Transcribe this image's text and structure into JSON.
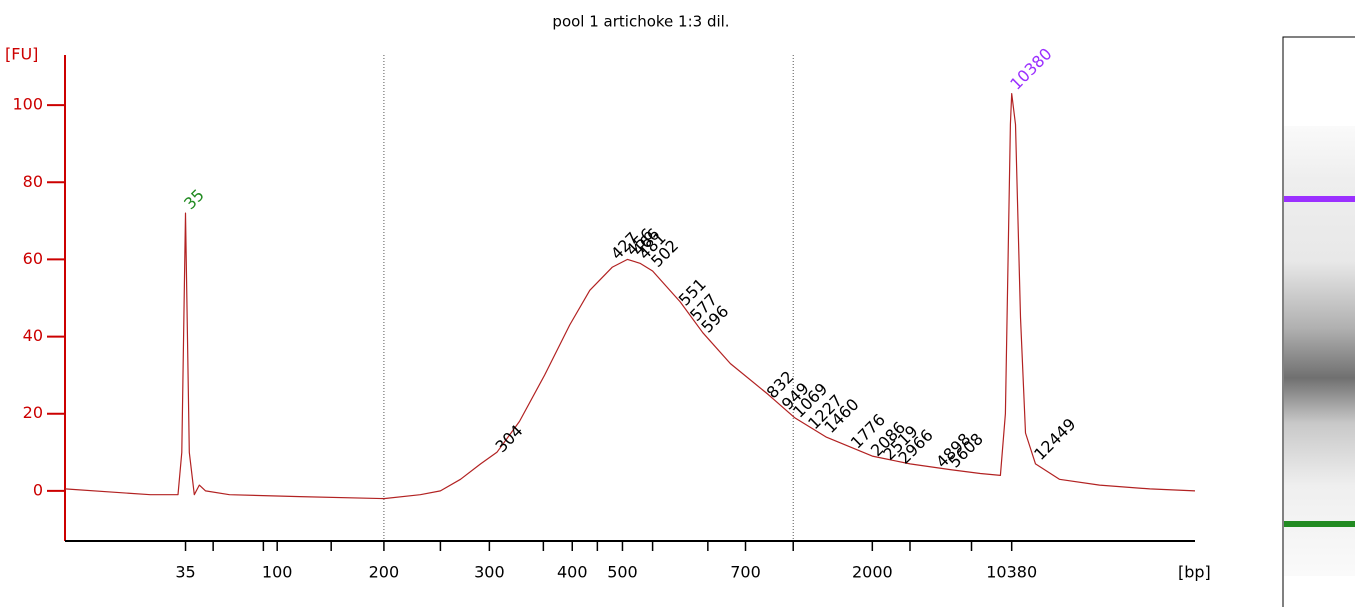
{
  "chart_data": {
    "type": "line",
    "title": "pool 1 artichoke 1:3 dil.",
    "y_label": "[FU]",
    "x_label": "[bp]",
    "xlim": [
      40,
      130
    ],
    "ylim": [
      -13,
      113
    ],
    "yticks": [
      0,
      20,
      40,
      60,
      80,
      100
    ],
    "xticks": [
      {
        "value": 49.6,
        "label": "35"
      },
      {
        "value": 56.9,
        "label": "100"
      },
      {
        "value": 65.4,
        "label": "200"
      },
      {
        "value": 73.8,
        "label": "300"
      },
      {
        "value": 80.4,
        "label": "400"
      },
      {
        "value": 84.4,
        "label": "500"
      },
      {
        "value": 94.2,
        "label": "700"
      },
      {
        "value": 104.3,
        "label": "2000"
      },
      {
        "value": 115.4,
        "label": "10380"
      }
    ],
    "minor_xticks": [
      51.8,
      55.8,
      61.2,
      69.9,
      78.1,
      82.4,
      86.8,
      91.2,
      98.0,
      107.3,
      112.2
    ],
    "reference_lines": [
      65.4,
      98.0
    ],
    "x": [
      40.0,
      46.8,
      49.0,
      49.3,
      49.6,
      49.9,
      50.3,
      50.7,
      51.2,
      53.1,
      58.7,
      65.4,
      68.3,
      69.9,
      71.5,
      73.1,
      74.4,
      76.2,
      78.2,
      80.2,
      81.8,
      83.6,
      84.8,
      85.8,
      86.8,
      89.0,
      90.8,
      93.0,
      96.0,
      98.1,
      100.6,
      104.3,
      107.3,
      110.5,
      112.9,
      114.5,
      114.9,
      115.3,
      115.4,
      115.7,
      116.1,
      116.5,
      117.3,
      119.2,
      122.4,
      126.4,
      130.0
    ],
    "series": [
      {
        "color": "#b22222",
        "values": [
          0.5,
          -1,
          -1,
          10,
          72,
          10,
          -1,
          1.5,
          0,
          -1,
          -1.5,
          -2,
          -1,
          0,
          3,
          7,
          10,
          18,
          30,
          43,
          52,
          58,
          60,
          59,
          57,
          49,
          41,
          33,
          25,
          19,
          14,
          9,
          7,
          5.5,
          4.5,
          4,
          20,
          95,
          103,
          95,
          45,
          15,
          7,
          3,
          1.5,
          0.5,
          0
        ]
      }
    ],
    "peaks": {
      "sizes": [
        35,
        304,
        427,
        456,
        466,
        481,
        502,
        551,
        577,
        596,
        832,
        949,
        1069,
        1227,
        1460,
        1776,
        2086,
        2519,
        2966,
        4898,
        5608,
        10380,
        12449
      ],
      "x": [
        49.6,
        74.4,
        83.6,
        84.8,
        85.3,
        85.8,
        86.8,
        89.0,
        89.9,
        90.8,
        96.0,
        97.2,
        98.1,
        99.3,
        100.6,
        102.7,
        104.3,
        105.3,
        106.5,
        109.5,
        110.5,
        115.4,
        117.3
      ],
      "y": [
        72,
        9,
        59,
        60,
        60,
        59,
        57,
        47,
        43,
        40,
        23,
        20,
        18,
        15,
        14,
        10,
        8,
        7,
        6,
        5,
        5,
        103,
        7
      ],
      "colors": [
        "#228b22",
        "#000000",
        "#000000",
        "#000000",
        "#000000",
        "#000000",
        "#000000",
        "#000000",
        "#000000",
        "#000000",
        "#000000",
        "#000000",
        "#000000",
        "#000000",
        "#000000",
        "#000000",
        "#000000",
        "#000000",
        "#000000",
        "#000000",
        "#000000",
        "#9b30ff",
        "#000000"
      ]
    },
    "axis_color": "#cc0000"
  }
}
